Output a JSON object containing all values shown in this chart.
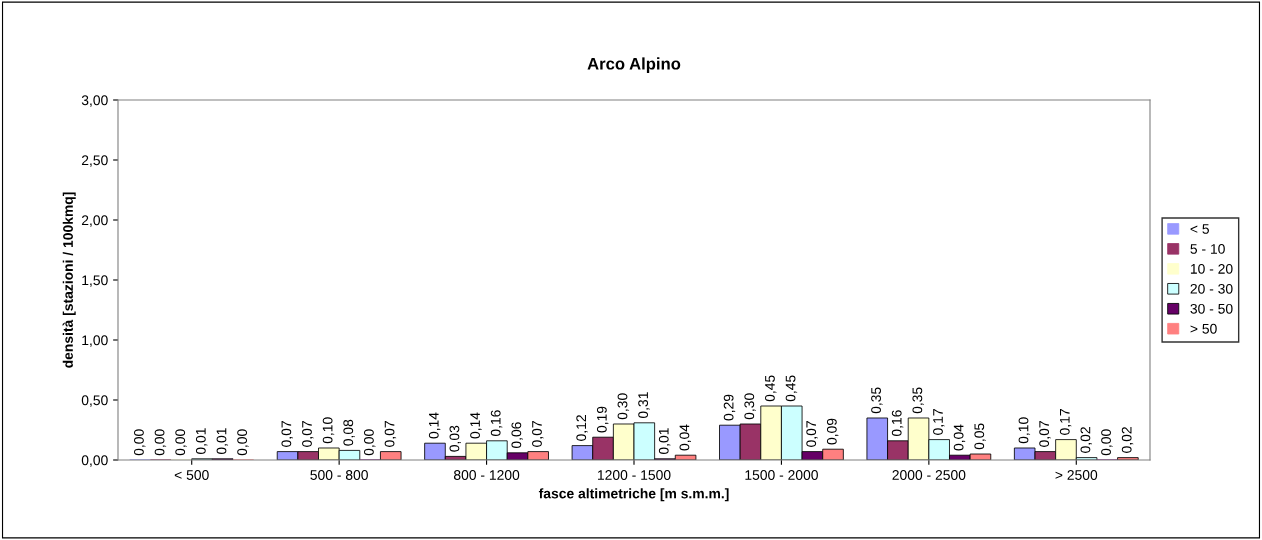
{
  "chart_data": {
    "type": "bar",
    "title": "Arco Alpino",
    "xlabel": "fasce altimetriche [m s.m.m.]",
    "ylabel": "densità [stazioni / 100kmq]",
    "categories": [
      "< 500",
      "500 - 800",
      "800 - 1200",
      "1200 - 1500",
      "1500 - 2000",
      "2000 - 2500",
      "> 2500"
    ],
    "series": [
      {
        "name": "< 5",
        "color": "#9999ff",
        "values": [
          0.0,
          0.07,
          0.14,
          0.12,
          0.29,
          0.35,
          0.1
        ],
        "value_labels": [
          "0,00",
          "0,07",
          "0,14",
          "0,12",
          "0,29",
          "0,35",
          "0,10"
        ]
      },
      {
        "name": "5 - 10",
        "color": "#993366",
        "values": [
          0.0,
          0.07,
          0.03,
          0.19,
          0.3,
          0.16,
          0.07
        ],
        "value_labels": [
          "0,00",
          "0,07",
          "0,03",
          "0,19",
          "0,30",
          "0,16",
          "0,07"
        ]
      },
      {
        "name": "10 - 20",
        "color": "#ffffcc",
        "values": [
          0.0,
          0.1,
          0.14,
          0.3,
          0.45,
          0.35,
          0.17
        ],
        "value_labels": [
          "0,00",
          "0,10",
          "0,14",
          "0,30",
          "0,45",
          "0,35",
          "0,17"
        ]
      },
      {
        "name": "20 - 30",
        "color": "#ccffff",
        "values": [
          0.01,
          0.08,
          0.16,
          0.31,
          0.45,
          0.17,
          0.02
        ],
        "value_labels": [
          "0,01",
          "0,08",
          "0,16",
          "0,31",
          "0,45",
          "0,17",
          "0,02"
        ]
      },
      {
        "name": "30 - 50",
        "color": "#660066",
        "values": [
          0.01,
          0.0,
          0.06,
          0.01,
          0.07,
          0.04,
          0.0
        ],
        "value_labels": [
          "0,01",
          "0,00",
          "0,06",
          "0,01",
          "0,07",
          "0,04",
          "0,00"
        ]
      },
      {
        "name": "> 50",
        "color": "#ff8080",
        "values": [
          0.0,
          0.07,
          0.07,
          0.04,
          0.09,
          0.05,
          0.02
        ],
        "value_labels": [
          "0,00",
          "0,07",
          "0,07",
          "0,04",
          "0,09",
          "0,05",
          "0,02"
        ]
      }
    ],
    "ylim": [
      0,
      3
    ],
    "yticks": [
      {
        "value": 0,
        "label": "0,00"
      },
      {
        "value": 0.5,
        "label": "0,50"
      },
      {
        "value": 1,
        "label": "1,00"
      },
      {
        "value": 1.5,
        "label": "1,50"
      },
      {
        "value": 2,
        "label": "2,00"
      },
      {
        "value": 2.5,
        "label": "2,50"
      },
      {
        "value": 3,
        "label": "3,00"
      }
    ],
    "grid": false,
    "legend": "right"
  }
}
